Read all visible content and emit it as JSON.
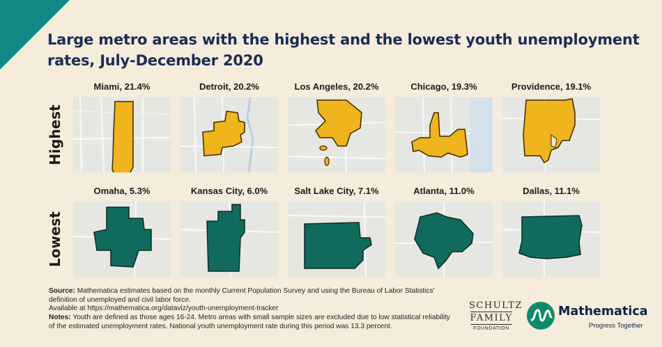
{
  "title": "Large metro areas with the highest and the lowest youth unemployment rates, July-December 2020",
  "rows": {
    "highest": {
      "label": "Highest",
      "color": "#f0b41c",
      "metros": [
        {
          "label": "Miami, 21.4%"
        },
        {
          "label": "Detroit, 20.2%"
        },
        {
          "label": "Los Angeles, 20.2%"
        },
        {
          "label": "Chicago, 19.3%"
        },
        {
          "label": "Providence, 19.1%"
        }
      ]
    },
    "lowest": {
      "label": "Lowest",
      "color": "#116b5c",
      "metros": [
        {
          "label": "Omaha, 5.3%"
        },
        {
          "label": "Kansas City, 6.0%"
        },
        {
          "label": "Salt Lake City, 7.1%"
        },
        {
          "label": "Atlanta, 11.0%"
        },
        {
          "label": "Dallas, 11.1%"
        }
      ]
    }
  },
  "notes": {
    "source_heading": "Source:",
    "source_text": "Mathematica estimates based on the monthly Current Population Survey and using the Bureau of Labor Statistics' definition of unemployed and civil labor force.",
    "source_link": "Available at https://mathematica.org/dataviz/youth-unemployment-tracker",
    "notes_heading": "Notes:",
    "notes_text": "Youth are defined as those ages 16-24. Metro areas with small sample sizes are excluded due to low statistical reliability of the estimated unemployment rates. National youth unemployment rate during this period was 13.3 percent."
  },
  "logos": {
    "schultz_line1": "SCHULTZ",
    "schultz_line2": "FAMILY",
    "schultz_line3": "FOUNDATION",
    "mathematica_name": "Mathematica",
    "mathematica_tagline": "Progress Together"
  },
  "colors": {
    "background": "#f6ecdc",
    "corner": "#0f8a86",
    "title": "#1b2c55",
    "map_bg": "#e6e6e3"
  },
  "icons": [
    "corner-triangle",
    "mathematica-logo-icon"
  ]
}
